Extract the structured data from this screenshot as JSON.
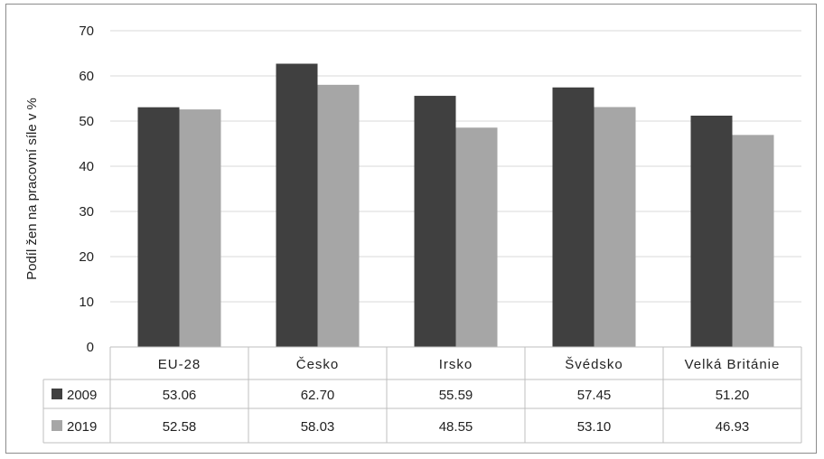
{
  "chart_data": {
    "type": "bar",
    "title": "",
    "xlabel": "",
    "ylabel": "Podíl žen na pracovní síle v %",
    "ylim": [
      0,
      70
    ],
    "yticks": [
      "0",
      "10",
      "20",
      "30",
      "40",
      "50",
      "60",
      "70"
    ],
    "grid": true,
    "legend": "data-table-left",
    "categories": [
      "EU-28",
      "Česko",
      "Irsko",
      "Švédsko",
      "Velká Británie"
    ],
    "series": [
      {
        "name": "2009",
        "color": "#404040",
        "values": [
          53.06,
          62.7,
          55.59,
          57.45,
          51.2
        ],
        "labels": [
          "53.06",
          "62.70",
          "55.59",
          "57.45",
          "51.20"
        ]
      },
      {
        "name": "2019",
        "color": "#a6a6a6",
        "values": [
          52.58,
          58.03,
          48.55,
          53.1,
          46.93
        ],
        "labels": [
          "52.58",
          "58.03",
          "48.55",
          "53.10",
          "46.93"
        ]
      }
    ]
  }
}
